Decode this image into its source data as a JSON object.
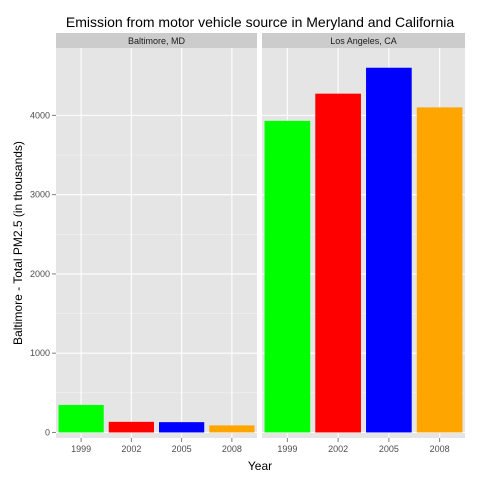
{
  "chart_data": {
    "type": "bar",
    "title": "Emission from motor vehicle source in Meryland and California",
    "xlabel": "Year",
    "ylabel": "Baltimore - Total PM2.5 (in thousands)",
    "categories": [
      "1999",
      "2002",
      "2005",
      "2008"
    ],
    "bar_colors": [
      "#00ff00",
      "#ff0000",
      "#0000ff",
      "#ffa500"
    ],
    "ylim": [
      -70,
      4850
    ],
    "yticks": [
      0,
      1000,
      2000,
      3000,
      4000
    ],
    "grid": true,
    "legend": "none",
    "facets": [
      {
        "label": "Baltimore, MD",
        "values": [
          347,
          134,
          130,
          89
        ]
      },
      {
        "label": "Los Angeles, CA",
        "values": [
          3931,
          4274,
          4601,
          4101
        ]
      }
    ]
  },
  "colors": {
    "panel_background": "#e5e5e5",
    "strip_background": "#cccccc",
    "grid_major": "#ffffff",
    "grid_minor": "#f2f2f2"
  }
}
